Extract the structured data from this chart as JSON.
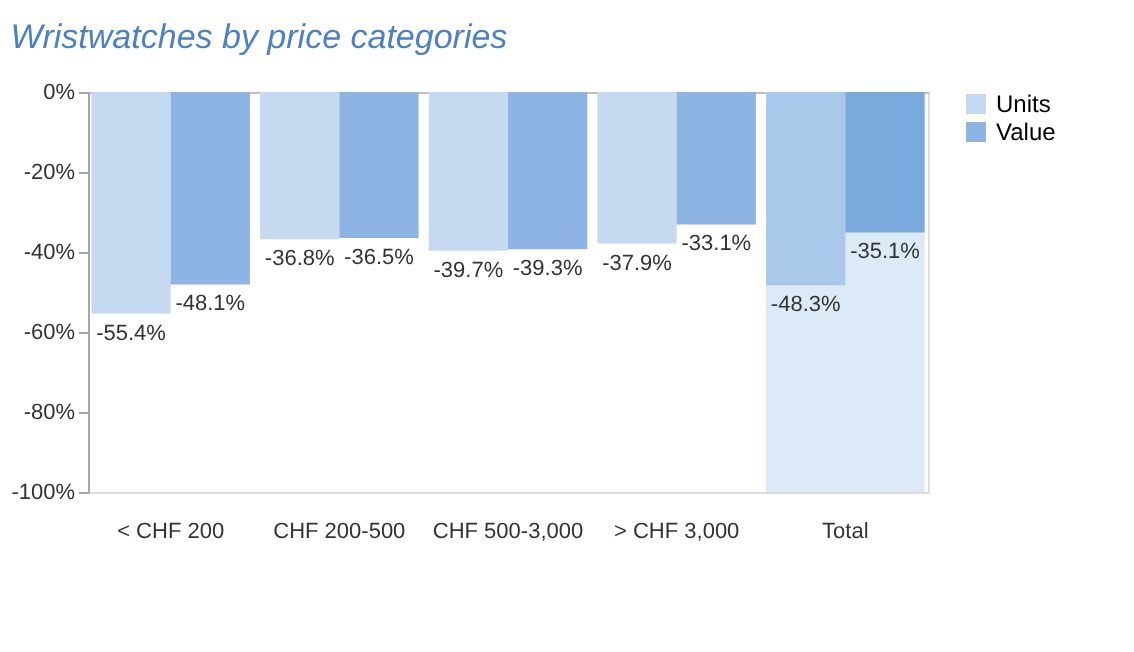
{
  "chart_data": {
    "type": "bar",
    "title": "Wristwatches by price categories",
    "categories": [
      "< CHF 200",
      "CHF 200-500",
      "CHF 500-3,000",
      "> CHF 3,000",
      "Total"
    ],
    "series": [
      {
        "name": "Units",
        "color": "#c5d9f1",
        "colors": [
          "#c5d9f1",
          "#c5d9f1",
          "#c5d9f1",
          "#c5d9f1",
          "#a9c8ea"
        ],
        "values": [
          -55.4,
          -36.8,
          -39.7,
          -37.9,
          -48.3
        ],
        "value_labels": [
          "-55.4%",
          "-36.8%",
          "-39.7%",
          "-37.9%",
          "-48.3%"
        ]
      },
      {
        "name": "Value",
        "color": "#8db4e2",
        "colors": [
          "#8db4e2",
          "#8db4e2",
          "#8db4e2",
          "#8db4e2",
          "#7aaadd"
        ],
        "values": [
          -48.1,
          -36.5,
          -39.3,
          -33.1,
          -35.1
        ],
        "value_labels": [
          "-48.1%",
          "-36.5%",
          "-39.3%",
          "-33.1%",
          "-35.1%"
        ]
      }
    ],
    "bands": [
      {
        "axis": "x",
        "from": "Total",
        "to": "Total",
        "color": "#dce9f6"
      }
    ],
    "ylim": [
      -100,
      0
    ],
    "yticks": [
      {
        "value": -100,
        "label": "-100%"
      },
      {
        "value": -80,
        "label": "-80%"
      },
      {
        "value": -60,
        "label": "-60%"
      },
      {
        "value": -40,
        "label": "-40%"
      },
      {
        "value": -20,
        "label": "-20%"
      },
      {
        "value": 0,
        "label": "0%"
      }
    ],
    "grid": false,
    "legend": "right"
  }
}
